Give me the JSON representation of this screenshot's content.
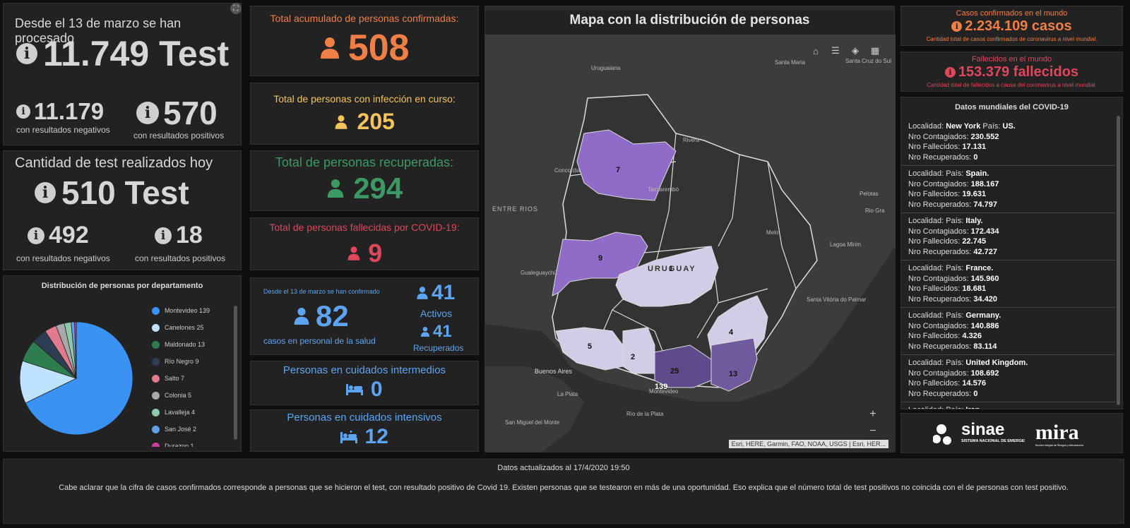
{
  "tests": {
    "title": "Desde el 13 de marzo se han procesado",
    "total": "11.749 Test",
    "neg_value": "11.179",
    "neg_label": "con resultados negativos",
    "pos_value": "570",
    "pos_label": "con resultados positivos"
  },
  "today": {
    "title": "Cantidad de test realizados hoy",
    "total": "510 Test",
    "neg_value": "492",
    "neg_label": "con resultados negativos",
    "pos_value": "18",
    "pos_label": "con resultados positivos"
  },
  "pie": {
    "title": "Distribución de personas por departamento"
  },
  "chart_data": {
    "type": "pie",
    "title": "Distribución de personas por departamento",
    "categories": [
      "Montevideo",
      "Canelones",
      "Maldonado",
      "Río Negro",
      "Salto",
      "Colonia",
      "Lavalleja",
      "San José",
      "Durazno"
    ],
    "values": [
      139,
      25,
      13,
      9,
      7,
      5,
      4,
      2,
      1
    ],
    "colors": [
      "#3a93f2",
      "#bfe2ff",
      "#2e7d4f",
      "#2d3e52",
      "#e07a8f",
      "#a8a8a8",
      "#8fc9ac",
      "#5fa0e8",
      "#cc3f9e"
    ],
    "legend": "right"
  },
  "confirmed": {
    "title": "Total acumulado de personas confirmadas:",
    "value": "508",
    "color": "#f07f46"
  },
  "active": {
    "title": "Total de personas con infección en curso:",
    "value": "205",
    "color": "#f5c35a"
  },
  "recovered": {
    "title": "Total de personas recuperadas:",
    "value": "294",
    "color": "#3b9a63"
  },
  "deceased": {
    "title": "Total de personas fallecidas por COVID-19:",
    "value": "9",
    "color": "#e0465c"
  },
  "health": {
    "caption": "Desde el 13 de marzo se han confirmado",
    "value": "82",
    "label": "casos en personal de la salud",
    "active_value": "41",
    "active_label": "Activos",
    "recovered_value": "41",
    "recovered_label": "Recuperados"
  },
  "intermediate": {
    "title": "Personas en cuidados intermedios",
    "value": "0"
  },
  "intensive": {
    "title": "Personas en cuidados intensivos",
    "value": "12"
  },
  "map": {
    "title": "Mapa con la distribución de personas",
    "attribution": "Esri, HERE, Garmin, FAO, NOAA, USGS | Esri, HER...",
    "zoom_in": "+",
    "zoom_out": "−",
    "country_label": "URUGUAY",
    "places": [
      "Uruguaiana",
      "Santa Maria",
      "Santa Cruz do Sul",
      "Rivera",
      "Concordia",
      "Tacuarembó",
      "ENTRE RIOS",
      "Pelotas",
      "Rio Gra",
      "Melo",
      "Lagoa Mirim",
      "Gualeguaychú",
      "Santa Vitória do Palmar",
      "Buenos Aires",
      "La Plata",
      "San Miguel del Monte",
      "Río de la Plata",
      "Montevideo"
    ],
    "departments": [
      {
        "name": "Salto",
        "value": "7"
      },
      {
        "name": "Río Negro",
        "value": "9"
      },
      {
        "name": "Durazno",
        "value": "1"
      },
      {
        "name": "Lavalleja",
        "value": "4"
      },
      {
        "name": "Colonia",
        "value": "5"
      },
      {
        "name": "San José",
        "value": "2"
      },
      {
        "name": "Canelones",
        "value": "25"
      },
      {
        "name": "Maldonado",
        "value": "13"
      },
      {
        "name": "Montevideo",
        "value": "139"
      }
    ]
  },
  "world_confirmed": {
    "title": "Casos confirmados en el mundo",
    "value": "2.234.109 casos",
    "caption": "Cantidad total de casos confirmados de coronavirus a nivel mundial.",
    "color": "#f07f46"
  },
  "world_deaths": {
    "title": "Fallecidos en el mundo",
    "value": "153.379 fallecidos",
    "caption": "Cantidad total de fallecidos a causa del coronavirus a nivel mundial.",
    "color": "#e0465c"
  },
  "world": {
    "title": "Datos mundiales del COVID-19",
    "lbl_loc": "Localidad:",
    "lbl_country": "País:",
    "lbl_cont": "Nro Contagiados:",
    "lbl_dead": "Nro Fallecidos:",
    "lbl_rec": "Nro Recuperados:",
    "rows": [
      {
        "locality": "New York",
        "country": "US.",
        "contagiados": "230.552",
        "fallecidos": "17.131",
        "recuperados": "0"
      },
      {
        "locality": "",
        "country": "Spain.",
        "contagiados": "188.167",
        "fallecidos": "19.631",
        "recuperados": "74.797"
      },
      {
        "locality": "",
        "country": "Italy.",
        "contagiados": "172.434",
        "fallecidos": "22.745",
        "recuperados": "42.727"
      },
      {
        "locality": "",
        "country": "France.",
        "contagiados": "145.960",
        "fallecidos": "18.681",
        "recuperados": "34.420"
      },
      {
        "locality": "",
        "country": "Germany.",
        "contagiados": "140.886",
        "fallecidos": "4.326",
        "recuperados": "83.114"
      },
      {
        "locality": "",
        "country": "United Kingdom.",
        "contagiados": "108.692",
        "fallecidos": "14.576",
        "recuperados": "0"
      },
      {
        "locality": "",
        "country": "Iran.",
        "contagiados": "",
        "fallecidos": "",
        "recuperados": ""
      }
    ]
  },
  "logos": {
    "sinae": "sinae",
    "sinae_sub": "SISTEMA NACIONAL DE EMERGENCIAS",
    "mira": "mira",
    "mira_sub": "Monitor Integral de Riesgos y Afectaciones"
  },
  "footer": {
    "updated": "Datos actualizados al 17/4/2020 19:50",
    "note": "Cabe aclarar que la cifra de casos confirmados corresponde a personas que se hicieron el test, con resultado positivo de Covid 19. Existen personas que se testearon en más de una oportunidad. Eso explica que el número total de test positivos no coincida con el de personas con test positivo."
  }
}
